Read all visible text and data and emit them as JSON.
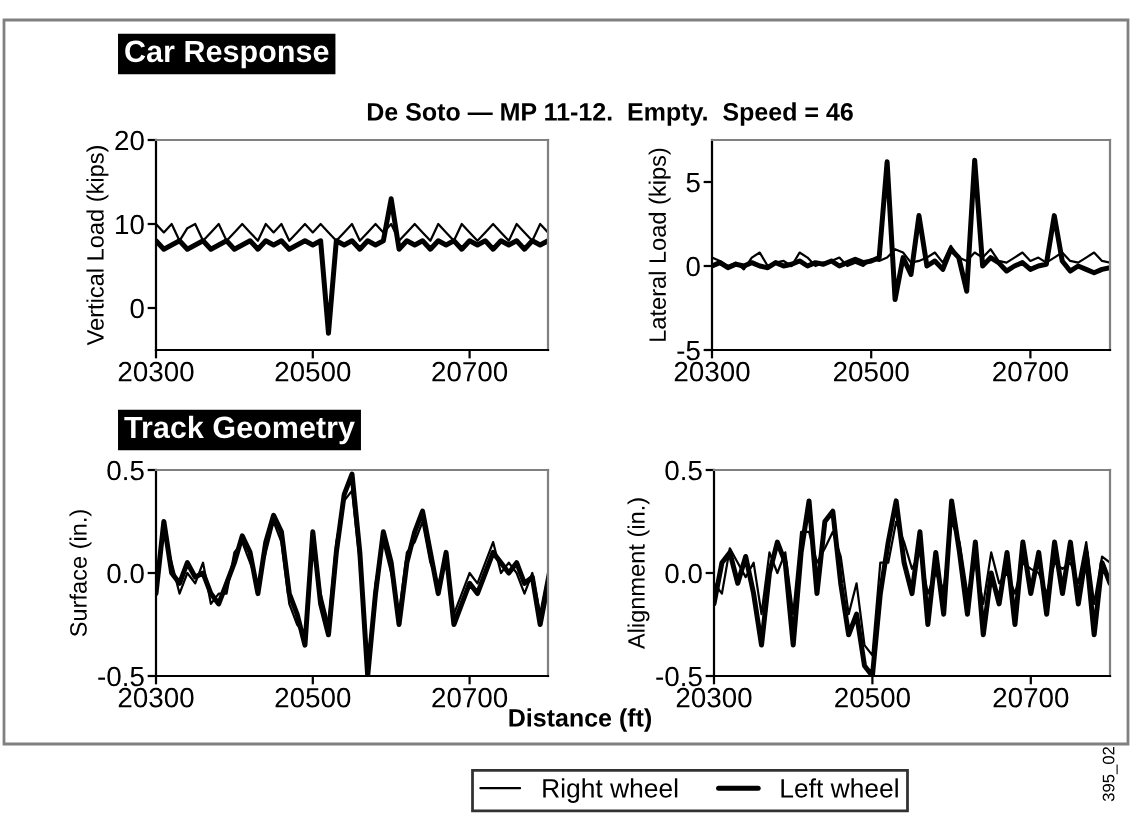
{
  "chart_data": [
    {
      "type": "line",
      "title": "Car Response",
      "subtitle": "De Soto — MP 11-12.  Empty.  Speed = 46",
      "ylabel": "Vertical Load (kips)",
      "legend": "bottom",
      "x": [
        20300,
        20310,
        20320,
        20330,
        20340,
        20350,
        20360,
        20370,
        20380,
        20390,
        20400,
        20410,
        20420,
        20430,
        20440,
        20450,
        20460,
        20470,
        20480,
        20490,
        20500,
        20510,
        20520,
        20530,
        20540,
        20550,
        20560,
        20570,
        20580,
        20590,
        20600,
        20610,
        20620,
        20630,
        20640,
        20650,
        20660,
        20670,
        20680,
        20690,
        20700,
        20710,
        20720,
        20730,
        20740,
        20750,
        20760,
        20770,
        20780,
        20790,
        20800
      ],
      "xlim": [
        20300,
        20800
      ],
      "xticks": [
        20300,
        20500,
        20700
      ],
      "ylim": [
        -5,
        20
      ],
      "yticks": [
        0,
        10,
        20
      ],
      "series": [
        {
          "name": "Right wheel",
          "color": "#000000",
          "values": [
            10,
            9,
            10,
            8,
            9.5,
            10,
            8,
            9,
            10,
            8,
            9,
            10,
            9,
            8,
            10,
            9,
            10,
            8,
            9,
            10,
            9,
            10,
            9,
            8,
            9,
            10,
            8,
            9,
            10,
            9,
            10,
            8,
            9,
            10,
            9,
            8,
            10,
            9,
            8,
            10,
            9,
            8,
            9,
            10,
            9,
            8,
            10,
            9,
            8,
            10,
            9
          ]
        },
        {
          "name": "Left wheel",
          "color": "#000000",
          "values": [
            8,
            7,
            7.5,
            8,
            7,
            7.5,
            8,
            7,
            7.5,
            8,
            7,
            7.5,
            8,
            7,
            8,
            7.5,
            8,
            7,
            7.5,
            8,
            7.5,
            8,
            -3,
            8,
            7.5,
            8,
            7,
            8,
            7.5,
            8,
            13,
            7,
            8,
            7.5,
            8,
            7,
            8,
            7.5,
            8,
            7,
            8,
            7.5,
            8,
            7,
            8,
            7.5,
            8,
            7,
            8,
            7.5,
            8
          ]
        }
      ]
    },
    {
      "type": "line",
      "ylabel": "Lateral Load (kips)",
      "x": [
        20300,
        20310,
        20320,
        20330,
        20340,
        20350,
        20360,
        20370,
        20380,
        20390,
        20400,
        20410,
        20420,
        20430,
        20440,
        20450,
        20460,
        20470,
        20480,
        20490,
        20500,
        20510,
        20520,
        20530,
        20540,
        20550,
        20560,
        20570,
        20580,
        20590,
        20600,
        20610,
        20620,
        20630,
        20640,
        20650,
        20660,
        20670,
        20680,
        20690,
        20700,
        20710,
        20720,
        20730,
        20740,
        20750,
        20760,
        20770,
        20780,
        20790,
        20800
      ],
      "xlim": [
        20300,
        20800
      ],
      "xticks": [
        20300,
        20500,
        20700
      ],
      "ylim": [
        -5,
        7.5
      ],
      "yticks": [
        -5,
        0,
        5
      ],
      "series": [
        {
          "color": "#000000",
          "values": [
            0.5,
            0.3,
            0,
            0.2,
            -0.2,
            0.5,
            0.8,
            0,
            0.2,
            0.3,
            0,
            0.8,
            0.5,
            0,
            0.2,
            0.3,
            0.5,
            0,
            0.2,
            0,
            0.4,
            0.3,
            0.5,
            1,
            0.8,
            0.2,
            0.3,
            0.5,
            0.8,
            0.2,
            1.2,
            0.5,
            0.3,
            0.8,
            0.5,
            1,
            0.3,
            0.2,
            0.5,
            0.8,
            0.3,
            0.5,
            0.2,
            0.5,
            0.8,
            0.3,
            0.2,
            0.5,
            0.8,
            0.3,
            0.2
          ]
        },
        {
          "color": "#000000",
          "values": [
            0,
            0.2,
            -0.1,
            0.1,
            0,
            0.2,
            0,
            -0.1,
            0.2,
            0,
            0.1,
            0.3,
            0,
            0.2,
            0.1,
            0.3,
            0,
            0.2,
            0.4,
            0.2,
            0.3,
            0.5,
            6.2,
            -2,
            0.5,
            -0.5,
            3,
            0,
            0.3,
            -0.2,
            1,
            0.5,
            -1.5,
            6.3,
            0,
            0.5,
            0.2,
            -0.3,
            0,
            0.2,
            -0.2,
            0,
            0.1,
            3,
            0.3,
            -0.3,
            0,
            -0.2,
            -0.4,
            -0.2,
            -0.1
          ]
        }
      ]
    },
    {
      "type": "line",
      "title": "Track Geometry",
      "xlabel": "Distance (ft)",
      "ylabel": "Surface (in.)",
      "x": [
        20300,
        20310,
        20320,
        20330,
        20340,
        20350,
        20360,
        20370,
        20380,
        20390,
        20400,
        20410,
        20420,
        20430,
        20440,
        20450,
        20460,
        20470,
        20480,
        20490,
        20500,
        20510,
        20520,
        20530,
        20540,
        20550,
        20560,
        20570,
        20580,
        20590,
        20600,
        20610,
        20620,
        20630,
        20640,
        20650,
        20660,
        20670,
        20680,
        20690,
        20700,
        20710,
        20720,
        20730,
        20740,
        20750,
        20760,
        20770,
        20780,
        20790,
        20800
      ],
      "xlim": [
        20300,
        20800
      ],
      "xticks": [
        20300,
        20500,
        20700
      ],
      "ylim": [
        -0.5,
        0.5
      ],
      "yticks": [
        -0.5,
        {
          "value": 0,
          "label": "0.0"
        },
        0.5
      ],
      "series": [
        {
          "color": "#000000",
          "values": [
            -0.05,
            0.2,
            0.05,
            -0.1,
            0.0,
            -0.05,
            0.05,
            -0.15,
            -0.1,
            -0.1,
            0.1,
            0.15,
            0.05,
            -0.05,
            0.1,
            0.25,
            0.15,
            -0.15,
            -0.25,
            -0.3,
            0.15,
            -0.1,
            -0.25,
            0.15,
            0.35,
            0.4,
            0.05,
            -0.5,
            -0.05,
            0.15,
            0.0,
            -0.2,
            0.1,
            0.15,
            0.25,
            0.05,
            -0.05,
            0.05,
            -0.2,
            -0.1,
            0.0,
            -0.05,
            0.05,
            0.15,
            0.0,
            0.05,
            0.0,
            -0.1,
            0.0,
            -0.2,
            0.0
          ]
        },
        {
          "color": "#000000",
          "values": [
            -0.1,
            0.25,
            0.0,
            -0.05,
            0.05,
            -0.02,
            0.0,
            -0.1,
            -0.15,
            -0.05,
            0.05,
            0.18,
            0.1,
            -0.1,
            0.15,
            0.28,
            0.2,
            -0.1,
            -0.2,
            -0.35,
            0.2,
            -0.15,
            -0.3,
            0.1,
            0.38,
            0.48,
            0.1,
            -0.5,
            -0.1,
            0.2,
            0.05,
            -0.25,
            0.05,
            0.2,
            0.3,
            0.1,
            -0.1,
            0.1,
            -0.25,
            -0.15,
            -0.05,
            -0.1,
            0.0,
            0.1,
            0.05,
            0.0,
            0.05,
            -0.05,
            -0.02,
            -0.25,
            -0.05
          ]
        }
      ]
    },
    {
      "type": "line",
      "ylabel": "Alignment (in.)",
      "annotations": [
        "395_02"
      ],
      "x": [
        20300,
        20310,
        20320,
        20330,
        20340,
        20350,
        20360,
        20370,
        20380,
        20390,
        20400,
        20410,
        20420,
        20430,
        20440,
        20450,
        20460,
        20470,
        20480,
        20490,
        20500,
        20510,
        20520,
        20530,
        20540,
        20550,
        20560,
        20570,
        20580,
        20590,
        20600,
        20610,
        20620,
        20630,
        20640,
        20650,
        20660,
        20670,
        20680,
        20690,
        20700,
        20710,
        20720,
        20730,
        20740,
        20750,
        20760,
        20770,
        20780,
        20790,
        20800
      ],
      "xlim": [
        20300,
        20800
      ],
      "xticks": [
        20300,
        20500,
        20700
      ],
      "ylim": [
        -0.5,
        0.5
      ],
      "yticks": [
        -0.5,
        {
          "value": 0,
          "label": "0.0"
        },
        0.5
      ],
      "series": [
        {
          "color": "#000000",
          "values": [
            -0.05,
            -0.1,
            0.12,
            0.05,
            -0.02,
            0.05,
            -0.2,
            0.1,
            0.0,
            0.1,
            -0.2,
            0.2,
            0.2,
            0.05,
            0.12,
            0.2,
            0.08,
            -0.2,
            -0.05,
            -0.35,
            -0.4,
            0.05,
            0.05,
            0.25,
            0.15,
            0.02,
            0.1,
            -0.1,
            0.0,
            -0.08,
            0.25,
            0.15,
            -0.1,
            0.05,
            -0.15,
            0.1,
            -0.05,
            0.0,
            -0.1,
            0.05,
            0.02,
            0.0,
            -0.1,
            0.05,
            0.02,
            0.05,
            -0.05,
            0.15,
            -0.15,
            0.08,
            0.05
          ]
        },
        {
          "color": "#000000",
          "values": [
            -0.15,
            0.05,
            0.1,
            -0.05,
            0.08,
            -0.1,
            -0.35,
            0.0,
            0.15,
            0.05,
            -0.35,
            0.1,
            0.35,
            -0.1,
            0.25,
            0.3,
            -0.05,
            -0.3,
            -0.2,
            -0.45,
            -0.5,
            -0.1,
            0.15,
            0.35,
            0.05,
            -0.1,
            0.2,
            -0.25,
            0.1,
            -0.2,
            0.35,
            0.1,
            -0.2,
            0.15,
            -0.3,
            0.0,
            -0.15,
            0.1,
            -0.25,
            0.15,
            -0.1,
            0.1,
            -0.2,
            0.15,
            -0.1,
            0.15,
            -0.15,
            0.1,
            -0.3,
            0.05,
            -0.05
          ]
        }
      ]
    }
  ]
}
